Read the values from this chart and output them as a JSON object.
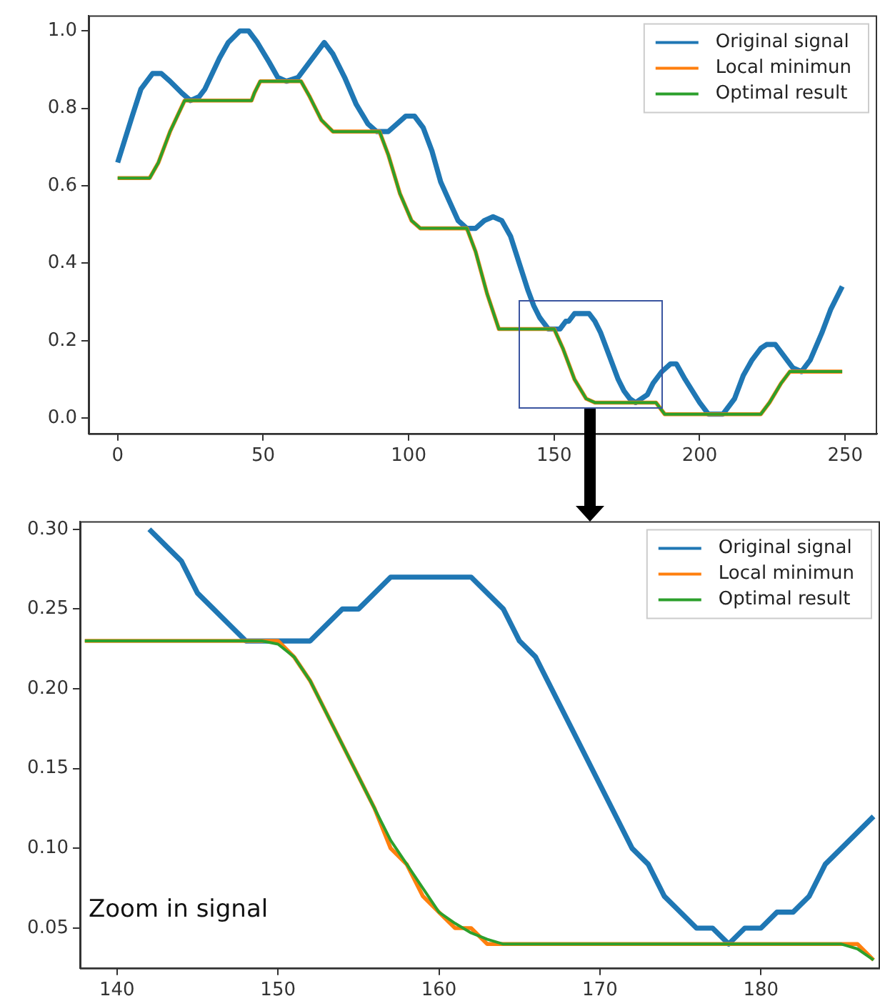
{
  "chart_data": [
    {
      "type": "line",
      "xlim": [
        -10,
        261
      ],
      "ylim": [
        -0.04,
        1.04
      ],
      "xticks": [
        0,
        50,
        100,
        150,
        200,
        250
      ],
      "yticks": [
        {
          "value": 0,
          "label": "0.0"
        },
        0.2,
        0.4,
        0.6,
        0.8,
        {
          "value": 1,
          "label": "1.0"
        }
      ],
      "legend": "top right",
      "series": [
        {
          "name": "Original signal",
          "color": "#1f77b4",
          "x": [
            0,
            5,
            8,
            12,
            15,
            18,
            22,
            25,
            28,
            30,
            35,
            38,
            42,
            45,
            48,
            52,
            55,
            58,
            62,
            65,
            69,
            71,
            74,
            78,
            82,
            86,
            89,
            93,
            96,
            99,
            102,
            105,
            108,
            111,
            114,
            117,
            120,
            123,
            126,
            129,
            132,
            135,
            138,
            141,
            143,
            145,
            148,
            152,
            154,
            155,
            157,
            162,
            164,
            166,
            172,
            174,
            176,
            178,
            180,
            182,
            184,
            187,
            190,
            192,
            195,
            200,
            203,
            208,
            212,
            215,
            218,
            221,
            223,
            226,
            229,
            232,
            235,
            238,
            242,
            245,
            249
          ],
          "values": [
            0.66,
            0.78,
            0.85,
            0.89,
            0.89,
            0.87,
            0.84,
            0.82,
            0.83,
            0.85,
            0.93,
            0.97,
            1.0,
            1.0,
            0.97,
            0.92,
            0.88,
            0.87,
            0.88,
            0.91,
            0.95,
            0.97,
            0.94,
            0.88,
            0.81,
            0.76,
            0.74,
            0.74,
            0.76,
            0.78,
            0.78,
            0.75,
            0.69,
            0.61,
            0.56,
            0.51,
            0.49,
            0.49,
            0.51,
            0.52,
            0.51,
            0.47,
            0.4,
            0.33,
            0.29,
            0.26,
            0.23,
            0.23,
            0.25,
            0.25,
            0.27,
            0.27,
            0.25,
            0.22,
            0.1,
            0.07,
            0.05,
            0.04,
            0.05,
            0.06,
            0.09,
            0.12,
            0.14,
            0.14,
            0.1,
            0.04,
            0.01,
            0.01,
            0.05,
            0.11,
            0.15,
            0.18,
            0.19,
            0.19,
            0.16,
            0.13,
            0.12,
            0.15,
            0.22,
            0.28,
            0.34
          ]
        },
        {
          "name": "Local minimun",
          "color": "#ff7f0e",
          "x": [
            0,
            11,
            14,
            18,
            23,
            46,
            47,
            49,
            63,
            66,
            70,
            74,
            90,
            93,
            97,
            101,
            104,
            120,
            123,
            127,
            131,
            150,
            153,
            157,
            161,
            164,
            185,
            188,
            221,
            224,
            228,
            231,
            249
          ],
          "values": [
            0.62,
            0.62,
            0.66,
            0.74,
            0.82,
            0.82,
            0.84,
            0.87,
            0.87,
            0.83,
            0.77,
            0.74,
            0.74,
            0.68,
            0.58,
            0.51,
            0.49,
            0.49,
            0.43,
            0.32,
            0.23,
            0.23,
            0.18,
            0.1,
            0.05,
            0.04,
            0.04,
            0.01,
            0.01,
            0.04,
            0.09,
            0.12,
            0.12
          ]
        },
        {
          "name": "Optimal result",
          "color": "#2ca02c",
          "x": [
            0,
            11,
            14,
            18,
            23,
            46,
            47,
            49,
            63,
            66,
            70,
            74,
            90,
            93,
            97,
            101,
            104,
            120,
            123,
            127,
            131,
            150,
            153,
            157,
            161,
            164,
            185,
            188,
            221,
            224,
            228,
            231,
            249
          ],
          "values": [
            0.62,
            0.62,
            0.66,
            0.74,
            0.82,
            0.82,
            0.84,
            0.87,
            0.87,
            0.83,
            0.77,
            0.74,
            0.74,
            0.68,
            0.58,
            0.51,
            0.49,
            0.49,
            0.43,
            0.32,
            0.23,
            0.23,
            0.18,
            0.1,
            0.05,
            0.04,
            0.04,
            0.01,
            0.01,
            0.04,
            0.09,
            0.12,
            0.12
          ]
        }
      ]
    },
    {
      "type": "line",
      "xlim": [
        137.7,
        187.4
      ],
      "ylim": [
        0.025,
        0.305
      ],
      "xticks": [
        140,
        150,
        160,
        170,
        180
      ],
      "yticks": [
        0.05,
        {
          "value": 0.1,
          "label": "0.10"
        },
        0.15,
        {
          "value": 0.2,
          "label": "0.20"
        },
        0.25,
        {
          "value": 0.3,
          "label": "0.30"
        }
      ],
      "legend": "top right",
      "annotations": [
        "Zoom in signal"
      ],
      "series": [
        {
          "name": "Original signal",
          "color": "#1f77b4",
          "x": [
            142,
            143,
            144,
            145,
            146,
            147,
            148,
            152,
            154,
            155,
            157,
            162,
            164,
            165,
            166,
            172,
            173,
            174,
            176,
            177,
            178,
            179,
            180,
            181,
            182,
            183,
            184,
            187
          ],
          "values": [
            0.3,
            0.29,
            0.28,
            0.26,
            0.25,
            0.24,
            0.23,
            0.23,
            0.25,
            0.25,
            0.27,
            0.27,
            0.25,
            0.23,
            0.22,
            0.1,
            0.09,
            0.07,
            0.05,
            0.05,
            0.04,
            0.05,
            0.05,
            0.06,
            0.06,
            0.07,
            0.09,
            0.12
          ]
        },
        {
          "name": "Local minimun",
          "color": "#ff7f0e",
          "x": [
            138,
            150,
            151,
            152,
            153,
            154,
            155,
            156,
            157,
            158,
            159,
            160,
            161,
            162,
            163,
            164,
            185,
            186,
            187
          ],
          "values": [
            0.23,
            0.23,
            0.22,
            0.205,
            0.185,
            0.165,
            0.145,
            0.125,
            0.1,
            0.09,
            0.07,
            0.06,
            0.05,
            0.05,
            0.04,
            0.04,
            0.04,
            0.04,
            0.03
          ]
        },
        {
          "name": "Optimal result",
          "color": "#2ca02c",
          "x": [
            138,
            149,
            150,
            151,
            152,
            153,
            154,
            155,
            156,
            157,
            158,
            159,
            160,
            161,
            162,
            163,
            164,
            185,
            186,
            187
          ],
          "values": [
            0.23,
            0.23,
            0.228,
            0.22,
            0.205,
            0.185,
            0.165,
            0.145,
            0.125,
            0.105,
            0.09,
            0.075,
            0.06,
            0.053,
            0.047,
            0.043,
            0.04,
            0.04,
            0.037,
            0.03
          ]
        }
      ]
    }
  ]
}
